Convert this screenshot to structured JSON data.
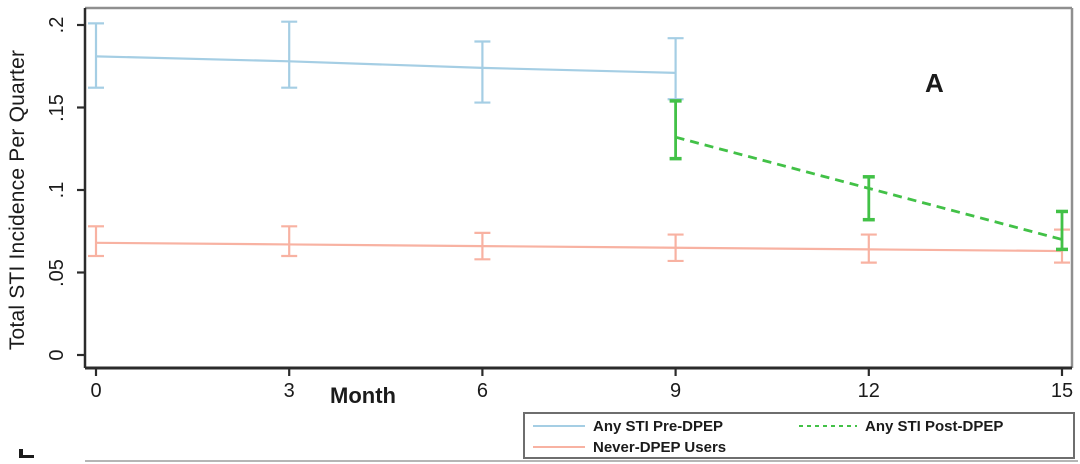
{
  "figure": {
    "panel_label": "A"
  },
  "chart_data": {
    "type": "line",
    "title": "",
    "xlabel": "Month",
    "ylabel": "Total STI Incidence Per Quarter",
    "panel_label": "A",
    "grid": false,
    "legend_position": "bottom-right-below-axis",
    "xlim": [
      0,
      15
    ],
    "ylim": [
      0,
      0.21
    ],
    "x_ticks": [
      0,
      3,
      6,
      9,
      12,
      15
    ],
    "y_ticks": [
      {
        "value": 0.2,
        "label": ".2"
      },
      {
        "value": 0.15,
        "label": ".15"
      },
      {
        "value": 0.1,
        "label": ".1"
      },
      {
        "value": 0.05,
        "label": ".05"
      },
      {
        "value": 0,
        "label": "0"
      }
    ],
    "series": [
      {
        "name": "Any STI Pre-DPEP",
        "color": "#a5cee4",
        "style": "solid",
        "x": [
          0,
          3,
          6,
          9
        ],
        "y": [
          0.181,
          0.178,
          0.174,
          0.171
        ],
        "ci_low": [
          0.162,
          0.162,
          0.153,
          0.155
        ],
        "ci_high": [
          0.201,
          0.202,
          0.19,
          0.192
        ]
      },
      {
        "name": "Never-DPEP Users",
        "color": "#f8b2a2",
        "style": "solid",
        "x": [
          0,
          3,
          6,
          9,
          12,
          15
        ],
        "y": [
          0.068,
          0.067,
          0.066,
          0.065,
          0.064,
          0.063
        ],
        "ci_low": [
          0.06,
          0.06,
          0.058,
          0.057,
          0.056,
          0.056
        ],
        "ci_high": [
          0.078,
          0.078,
          0.074,
          0.073,
          0.073,
          0.076
        ]
      },
      {
        "name": "Any STI Post-DPEP",
        "color": "#42c147",
        "style": "dashed",
        "x": [
          9,
          12,
          15
        ],
        "y": [
          0.132,
          0.101,
          0.07
        ],
        "ci_low": [
          0.119,
          0.082,
          0.064
        ],
        "ci_high": [
          0.154,
          0.108,
          0.087
        ]
      }
    ],
    "legend": {
      "entries": [
        {
          "label": "Any STI Pre-DPEP",
          "style": "solid",
          "color": "#a5cee4",
          "col": 0,
          "row": 0
        },
        {
          "label": "Never-DPEP Users",
          "style": "solid",
          "color": "#f8b2a2",
          "col": 0,
          "row": 1
        },
        {
          "label": "Any STI Post-DPEP",
          "style": "dashed",
          "color": "#42c147",
          "col": 1,
          "row": 0
        }
      ]
    },
    "colors": {
      "pre_dpep_blue": "#a5cee4",
      "never_dpep_pink": "#f8b2a2",
      "post_dpep_green": "#42c147",
      "axis_dark": "#2b2b2b",
      "frame_gray": "#8f8f8f",
      "text": "#1b1b1b"
    }
  }
}
